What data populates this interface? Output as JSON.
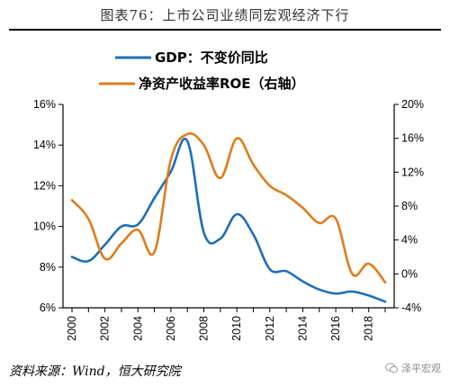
{
  "title": "图表76：上市公司业绩同宏观经济下行",
  "source": "资料来源：Wind，恒大研究院",
  "watermark": "泽平宏观",
  "chart_data": {
    "type": "line",
    "x": [
      2000,
      2001,
      2002,
      2003,
      2004,
      2005,
      2006,
      2007,
      2008,
      2009,
      2010,
      2011,
      2012,
      2013,
      2014,
      2015,
      2016,
      2017,
      2018,
      2019
    ],
    "x_tick_labels": [
      "2000",
      "2002",
      "2004",
      "2006",
      "2008",
      "2010",
      "2012",
      "2014",
      "2016",
      "2018"
    ],
    "left_axis": {
      "ylim": [
        6,
        16
      ],
      "tick_labels": [
        "6%",
        "8%",
        "10%",
        "12%",
        "14%",
        "16%"
      ]
    },
    "right_axis": {
      "ylim": [
        -4,
        20
      ],
      "tick_labels": [
        "-4%",
        "0%",
        "4%",
        "8%",
        "12%",
        "16%",
        "20%"
      ]
    },
    "grid": false,
    "legend_position": "top-center",
    "series": [
      {
        "name": "GDP：不变价同比",
        "axis": "left",
        "color": "#1f6fb5",
        "values": [
          8.5,
          8.3,
          9.1,
          10.0,
          10.1,
          11.4,
          12.7,
          14.2,
          9.7,
          9.4,
          10.6,
          9.6,
          7.9,
          7.8,
          7.3,
          6.9,
          6.7,
          6.8,
          6.6,
          6.3
        ]
      },
      {
        "name": "净资产收益率ROE（右轴）",
        "axis": "right",
        "color": "#e07b1a",
        "values": [
          8.7,
          6.5,
          1.8,
          3.6,
          5.2,
          2.6,
          13.5,
          16.5,
          15.2,
          11.3,
          16.0,
          12.9,
          10.4,
          9.3,
          7.8,
          6.0,
          6.5,
          0.0,
          1.2,
          -1.0
        ]
      }
    ]
  }
}
